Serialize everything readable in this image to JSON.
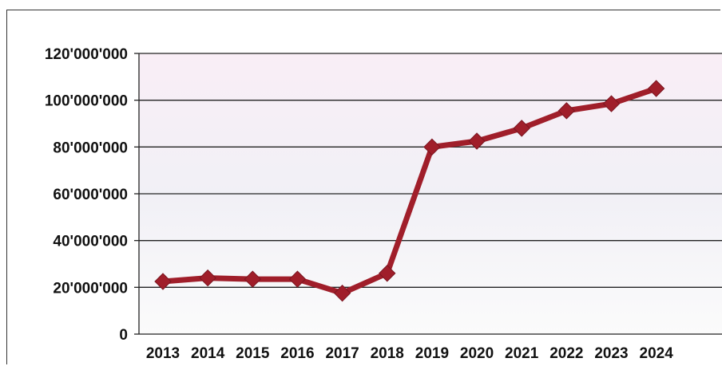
{
  "chart_data": {
    "type": "line",
    "title": "",
    "xlabel": "",
    "ylabel": "",
    "categories": [
      "2013",
      "2014",
      "2015",
      "2016",
      "2017",
      "2018",
      "2019",
      "2020",
      "2021",
      "2022",
      "2023",
      "2024"
    ],
    "series": [
      {
        "values": [
          22500000,
          24000000,
          23500000,
          23500000,
          17500000,
          26000000,
          80000000,
          82500000,
          88000000,
          95500000,
          98500000,
          105000000
        ]
      }
    ],
    "ylim": [
      0,
      120000000
    ],
    "yticks": [
      0,
      20000000,
      40000000,
      60000000,
      80000000,
      100000000,
      120000000
    ],
    "ytick_labels": [
      "0",
      "20'000'000",
      "40'000'000",
      "60'000'000",
      "80'000'000",
      "100'000'000",
      "120'000'000"
    ],
    "grid": true,
    "legend": "none",
    "colors": {
      "line": "#a01e2a",
      "marker": "#a01e2a",
      "plot_background": "#f6f1f6",
      "grid": "#222222"
    }
  }
}
